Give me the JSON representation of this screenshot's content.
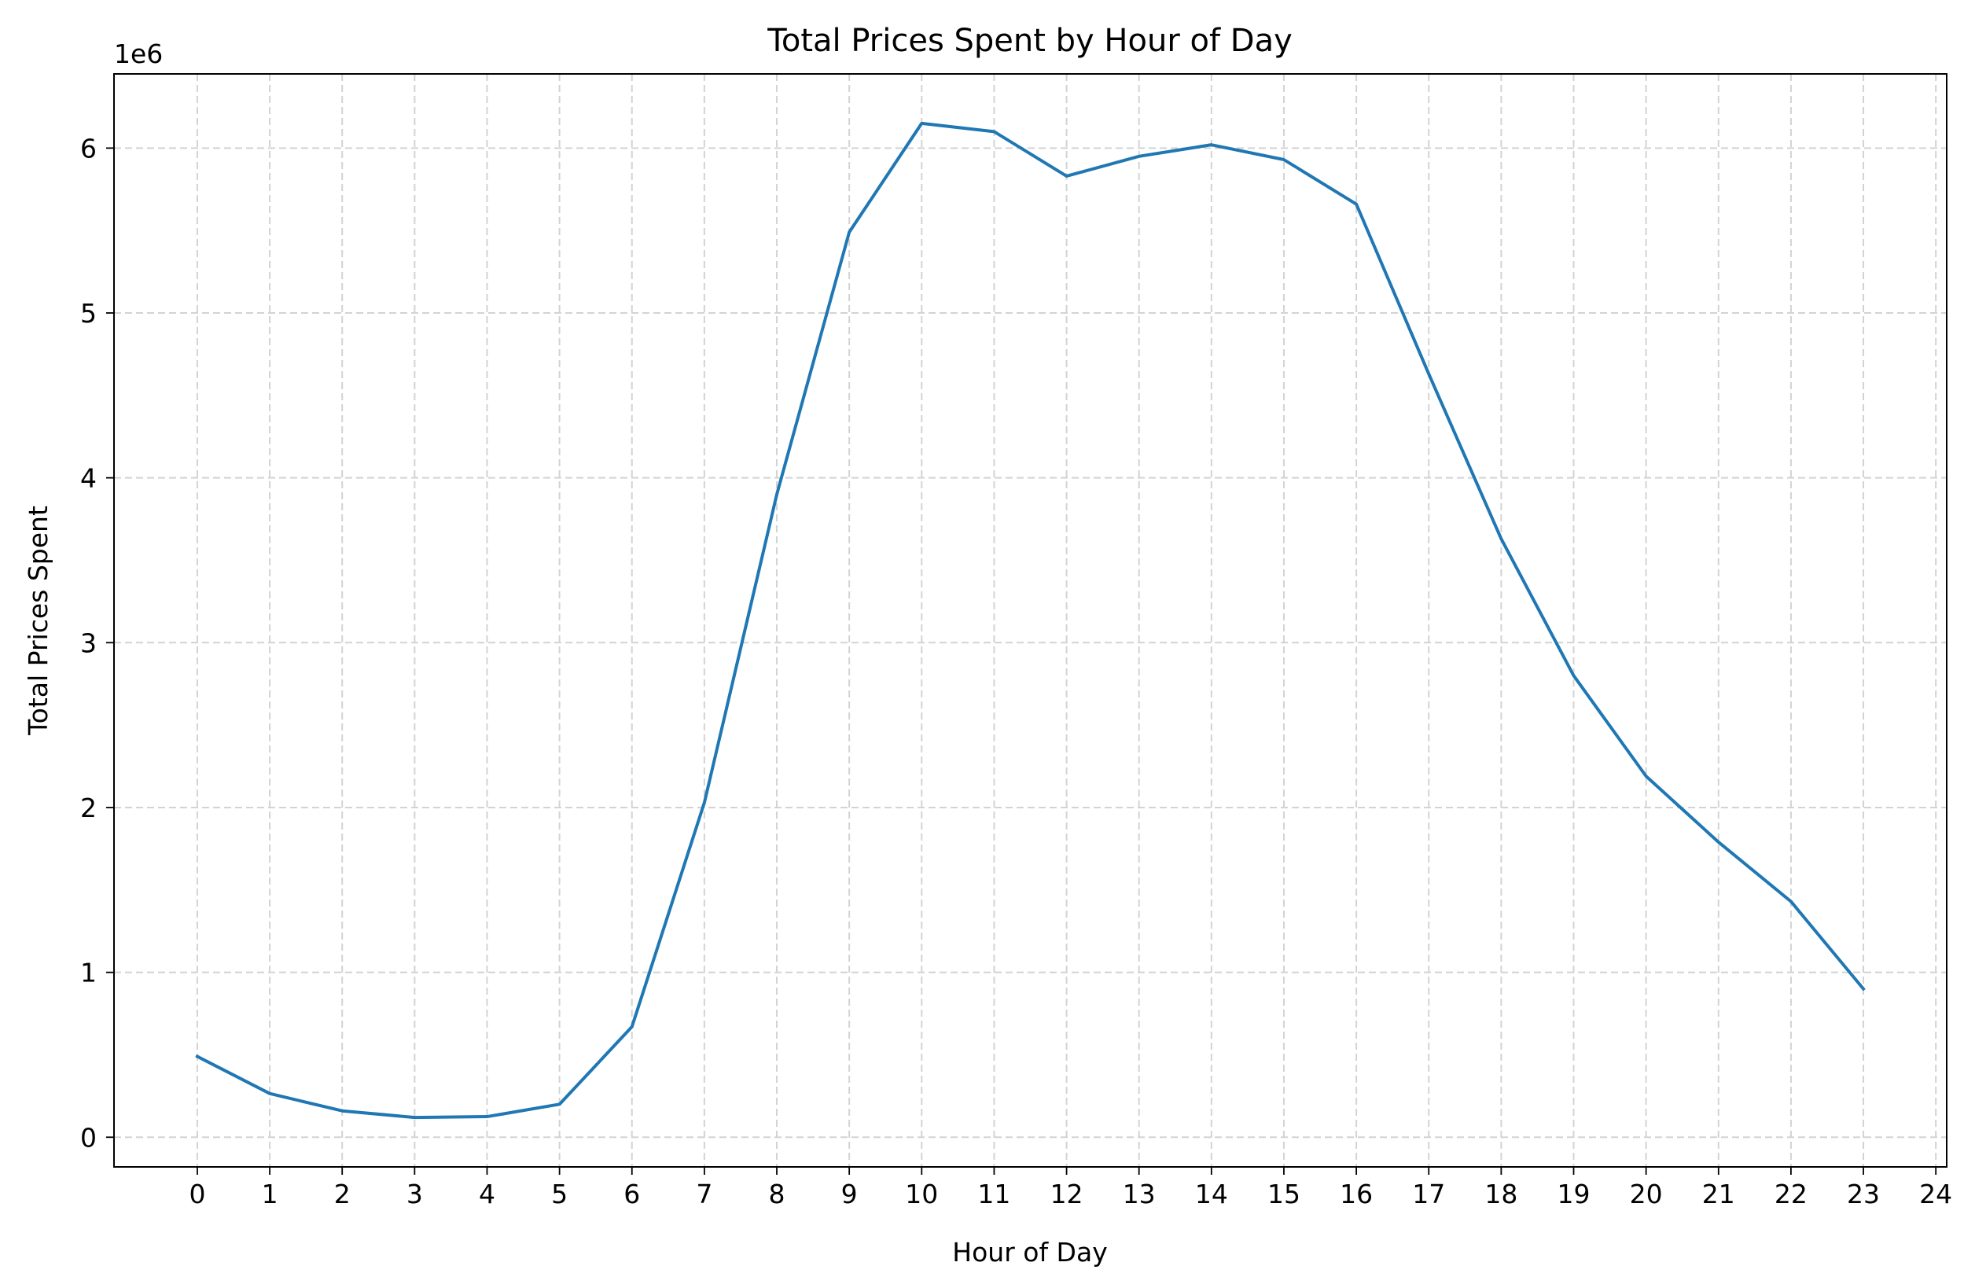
{
  "chart_data": {
    "type": "line",
    "title": "Total Prices Spent by Hour of Day",
    "xlabel": "Hour of Day",
    "ylabel": "Total Prices Spent",
    "offset_label": "1e6",
    "x": [
      0,
      1,
      2,
      3,
      4,
      5,
      6,
      7,
      8,
      9,
      10,
      11,
      12,
      13,
      14,
      15,
      16,
      17,
      18,
      19,
      20,
      21,
      22,
      23
    ],
    "series": [
      {
        "values": [
          490000,
          265000,
          160000,
          120000,
          125000,
          200000,
          670000,
          2030000,
          3900000,
          5490000,
          6150000,
          6100000,
          5830000,
          5950000,
          6020000,
          5930000,
          5660000,
          4630000,
          3630000,
          2800000,
          2190000,
          1790000,
          1430000,
          900000
        ],
        "color": "#1f77b4"
      }
    ],
    "x_ticks": [
      "0",
      "1",
      "2",
      "3",
      "4",
      "5",
      "6",
      "7",
      "8",
      "9",
      "10",
      "11",
      "12",
      "13",
      "14",
      "15",
      "16",
      "17",
      "18",
      "19",
      "20",
      "21",
      "22",
      "23",
      "24"
    ],
    "y_ticks": [
      "0",
      "1",
      "2",
      "3",
      "4",
      "5",
      "6"
    ],
    "xlim": [
      -1.15,
      24.15
    ],
    "ylim": [
      -180000,
      6450000
    ],
    "grid": true,
    "legend": "none"
  }
}
